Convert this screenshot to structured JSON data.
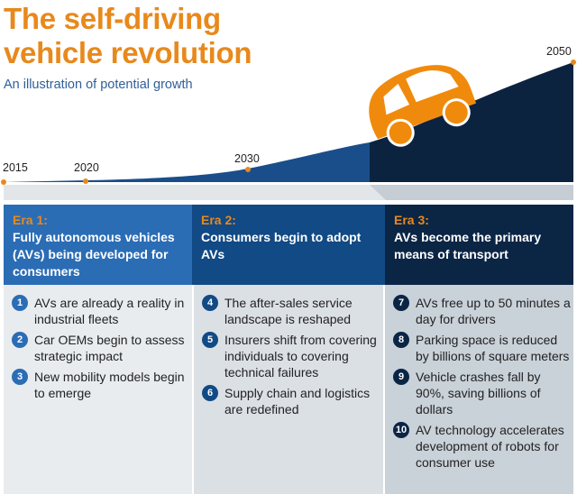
{
  "title_line1": "The self-driving",
  "title_line2": "vehicle revolution",
  "subtitle": "An illustration of potential growth",
  "years": [
    "2015",
    "2020",
    "2030",
    "2050"
  ],
  "colors": {
    "accent": "#E8891C",
    "era1": "#2B6DB5",
    "era2": "#114A85",
    "era3": "#0B2545"
  },
  "eras": [
    {
      "label": "Era 1:",
      "desc": "Fully autonomous vehicles (AVs) being developed for consumers",
      "items": [
        {
          "n": "1",
          "text": "AVs are already a reality in industrial fleets"
        },
        {
          "n": "2",
          "text": "Car OEMs begin to assess strategic impact"
        },
        {
          "n": "3",
          "text": "New mobility models begin to emerge"
        }
      ]
    },
    {
      "label": "Era 2:",
      "desc": "Consumers begin to adopt AVs",
      "items": [
        {
          "n": "4",
          "text": "The after-sales service landscape is reshaped"
        },
        {
          "n": "5",
          "text": "Insurers shift from covering individuals to covering technical failures"
        },
        {
          "n": "6",
          "text": "Supply chain and logistics are redefined"
        }
      ]
    },
    {
      "label": "Era 3:",
      "desc": "AVs become the primary means of transport",
      "items": [
        {
          "n": "7",
          "text": "AVs free up to 50 minutes a day for drivers"
        },
        {
          "n": "8",
          "text": "Parking space is reduced by billions of square meters"
        },
        {
          "n": "9",
          "text": "Vehicle crashes fall by 90%, saving billions of dollars"
        },
        {
          "n": "10",
          "text": "AV technology accelerates development of robots for consumer use"
        }
      ]
    }
  ]
}
